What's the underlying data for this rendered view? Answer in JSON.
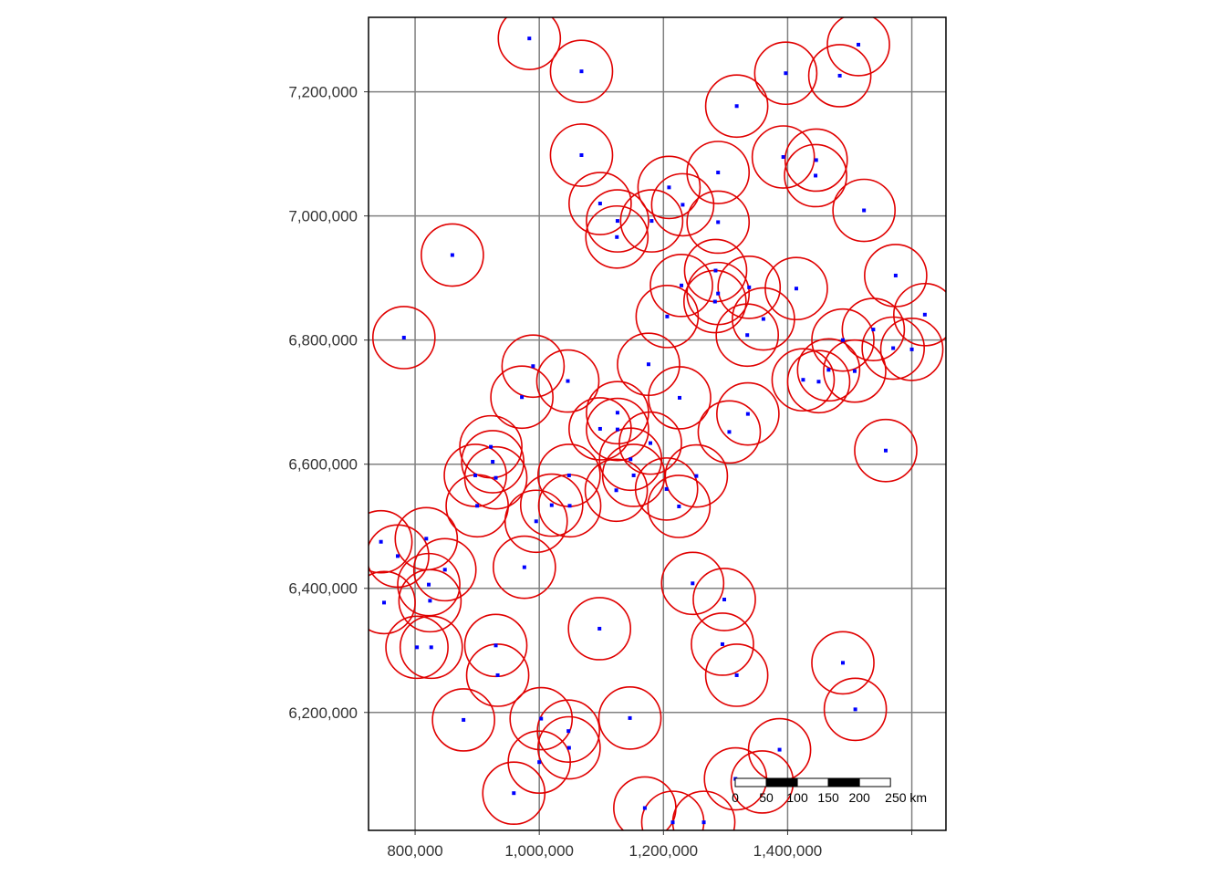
{
  "map": {
    "x_range": [
      725000,
      1655000
    ],
    "y_range": [
      6010000,
      7320000
    ],
    "x_ticks": [
      {
        "value": 800000,
        "label": "800,000"
      },
      {
        "value": 1000000,
        "label": "1,000,000"
      },
      {
        "value": 1200000,
        "label": "1,200,000"
      },
      {
        "value": 1400000,
        "label": "1,400,000"
      },
      {
        "value": 1600000,
        "label": ""
      }
    ],
    "y_ticks": [
      {
        "value": 6200000,
        "label": "6,200,000"
      },
      {
        "value": 6400000,
        "label": "6,400,000"
      },
      {
        "value": 6600000,
        "label": "6,600,000"
      },
      {
        "value": 6800000,
        "label": "6,800,000"
      },
      {
        "value": 7000000,
        "label": "7,000,000"
      },
      {
        "value": 7200000,
        "label": "7,200,000"
      }
    ],
    "buffer_radius": 50000,
    "colors": {
      "buffer": "#e00000",
      "point": "#0000ff",
      "grid": "#808080",
      "frame": "#000000"
    },
    "grid": true
  },
  "scale_bar": {
    "labels": [
      "0",
      "50",
      "100",
      "150",
      "200",
      "250 km"
    ]
  },
  "points": [
    [
      984000,
      7286000
    ],
    [
      1068000,
      7233000
    ],
    [
      1397000,
      7230000
    ],
    [
      1514000,
      7276000
    ],
    [
      1484000,
      7226000
    ],
    [
      1318000,
      7177000
    ],
    [
      1068000,
      7098000
    ],
    [
      1393000,
      7095000
    ],
    [
      1446000,
      7090000
    ],
    [
      1445000,
      7065000
    ],
    [
      1288000,
      7070000
    ],
    [
      1209000,
      7046000
    ],
    [
      1098000,
      7020000
    ],
    [
      1231000,
      7018000
    ],
    [
      1523000,
      7009000
    ],
    [
      1126000,
      6992000
    ],
    [
      1181000,
      6992000
    ],
    [
      1288000,
      6990000
    ],
    [
      1125000,
      6966000
    ],
    [
      860000,
      6937000
    ],
    [
      1574000,
      6904000
    ],
    [
      1284000,
      6912000
    ],
    [
      1229000,
      6888000
    ],
    [
      1288000,
      6875000
    ],
    [
      1338000,
      6885000
    ],
    [
      1414000,
      6883000
    ],
    [
      1283000,
      6862000
    ],
    [
      1621000,
      6841000
    ],
    [
      1206000,
      6838000
    ],
    [
      1361000,
      6834000
    ],
    [
      1538000,
      6817000
    ],
    [
      1335000,
      6808000
    ],
    [
      782000,
      6804000
    ],
    [
      1489000,
      6800000
    ],
    [
      1570000,
      6787000
    ],
    [
      1600000,
      6785000
    ],
    [
      1176000,
      6761000
    ],
    [
      990000,
      6758000
    ],
    [
      1466000,
      6752000
    ],
    [
      1508000,
      6750000
    ],
    [
      1046000,
      6734000
    ],
    [
      1425000,
      6736000
    ],
    [
      1450000,
      6733000
    ],
    [
      972000,
      6708000
    ],
    [
      1226000,
      6707000
    ],
    [
      1126000,
      6683000
    ],
    [
      1336000,
      6681000
    ],
    [
      1098000,
      6657000
    ],
    [
      1126000,
      6656000
    ],
    [
      1306000,
      6652000
    ],
    [
      1179000,
      6634000
    ],
    [
      922000,
      6628000
    ],
    [
      1558000,
      6622000
    ],
    [
      1147000,
      6608000
    ],
    [
      925000,
      6604000
    ],
    [
      897000,
      6582000
    ],
    [
      1048000,
      6582000
    ],
    [
      1152000,
      6582000
    ],
    [
      1253000,
      6581000
    ],
    [
      930000,
      6578000
    ],
    [
      1124000,
      6558000
    ],
    [
      1205000,
      6560000
    ],
    [
      1020000,
      6534000
    ],
    [
      1049000,
      6533000
    ],
    [
      900000,
      6533000
    ],
    [
      1225000,
      6532000
    ],
    [
      995000,
      6508000
    ],
    [
      818000,
      6480000
    ],
    [
      745000,
      6475000
    ],
    [
      772000,
      6452000
    ],
    [
      976000,
      6434000
    ],
    [
      848000,
      6430000
    ],
    [
      822000,
      6406000
    ],
    [
      1247000,
      6408000
    ],
    [
      1298000,
      6382000
    ],
    [
      824000,
      6380000
    ],
    [
      750000,
      6377000
    ],
    [
      1097000,
      6335000
    ],
    [
      1295000,
      6310000
    ],
    [
      930000,
      6308000
    ],
    [
      803000,
      6305000
    ],
    [
      826000,
      6305000
    ],
    [
      1489000,
      6280000
    ],
    [
      1318000,
      6260000
    ],
    [
      933000,
      6260000
    ],
    [
      1509000,
      6205000
    ],
    [
      878000,
      6188000
    ],
    [
      1146000,
      6191000
    ],
    [
      1003000,
      6190000
    ],
    [
      1047000,
      6170000
    ],
    [
      1048000,
      6143000
    ],
    [
      1387000,
      6140000
    ],
    [
      1000000,
      6120000
    ],
    [
      1316000,
      6093000
    ],
    [
      1359000,
      6088000
    ],
    [
      959000,
      6070000
    ],
    [
      1170000,
      6046000
    ],
    [
      1215000,
      6023000
    ],
    [
      1265000,
      6023000
    ]
  ]
}
